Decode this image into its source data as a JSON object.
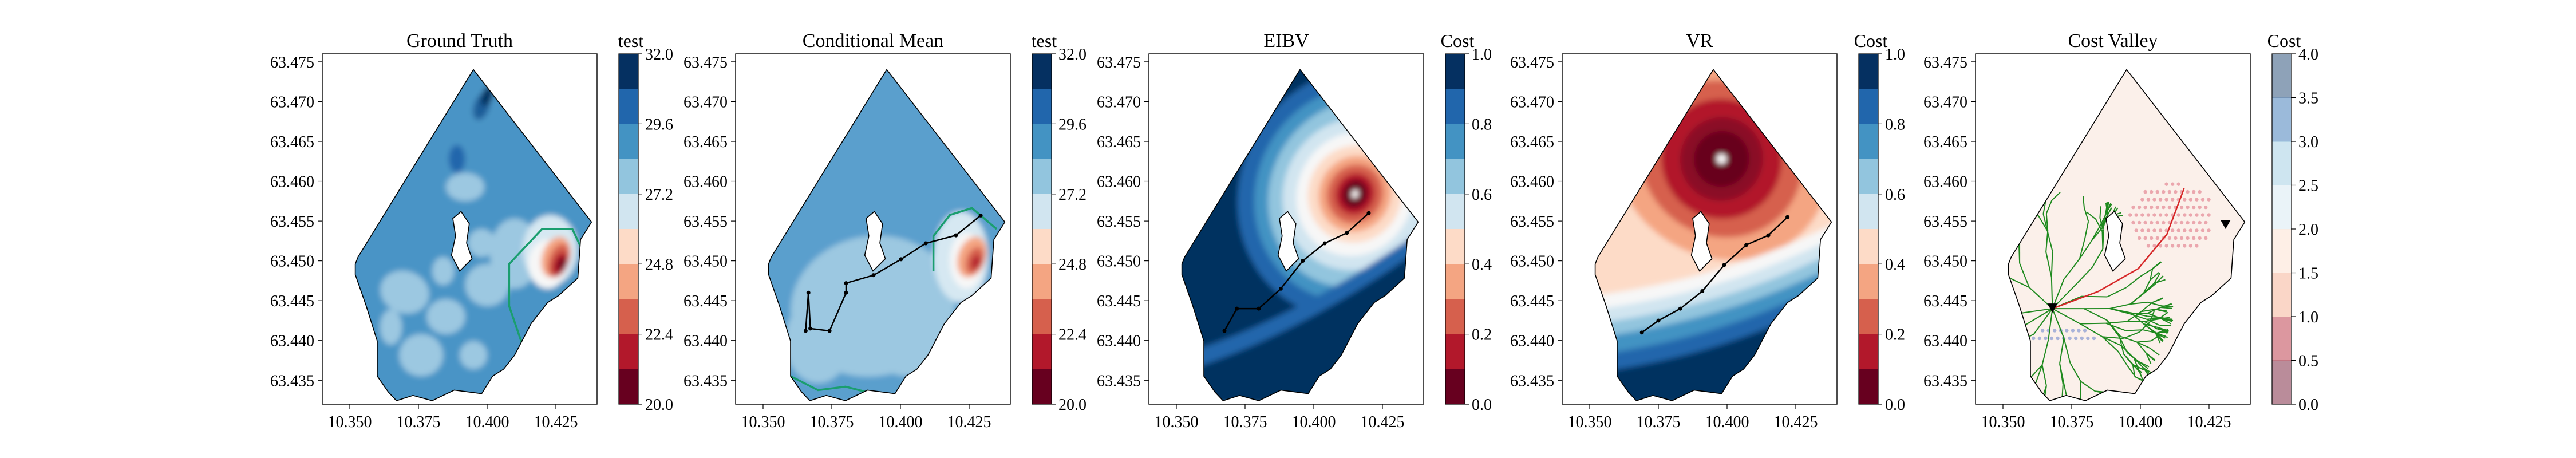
{
  "figure": {
    "panels": [
      {
        "title": "Ground Truth",
        "kind": "field",
        "colorbar": {
          "title": "test",
          "ticks": [
            "32.0",
            "29.6",
            "27.2",
            "24.8",
            "22.4",
            "20.0"
          ],
          "levels": 10,
          "scheme": "RdBu"
        }
      },
      {
        "title": "Conditional Mean",
        "kind": "field_path",
        "colorbar": {
          "title": "test",
          "ticks": [
            "32.0",
            "29.6",
            "27.2",
            "24.8",
            "22.4",
            "20.0"
          ],
          "levels": 10,
          "scheme": "RdBu"
        }
      },
      {
        "title": "EIBV",
        "kind": "eibv",
        "colorbar": {
          "title": "Cost",
          "ticks": [
            "1.0",
            "0.8",
            "0.6",
            "0.4",
            "0.2",
            "0.0"
          ],
          "levels": 10,
          "scheme": "RdBu"
        }
      },
      {
        "title": "VR",
        "kind": "vr",
        "colorbar": {
          "title": "Cost",
          "ticks": [
            "1.0",
            "0.8",
            "0.6",
            "0.4",
            "0.2",
            "0.0"
          ],
          "levels": 10,
          "scheme": "RdBu"
        }
      },
      {
        "title": "Cost Valley",
        "kind": "valley",
        "colorbar": {
          "title": "Cost",
          "ticks": [
            "4.0",
            "3.5",
            "3.0",
            "2.5",
            "2.0",
            "1.5",
            "1.0",
            "0.5",
            "0.0"
          ],
          "levels": 8,
          "scheme": "RdBu_faded"
        }
      }
    ],
    "colors": {
      "threshold_contour": "#1a9e6f",
      "tree_branches": "#1f8a1f",
      "best_path": "#d62728",
      "path": "#000000",
      "rdbu": [
        "#67001f",
        "#b2182b",
        "#d6604d",
        "#f4a582",
        "#fddbc7",
        "#f7f7f7",
        "#d1e5f0",
        "#92c5de",
        "#4393c3",
        "#2166ac",
        "#053061"
      ]
    }
  },
  "chart_data": [
    {
      "type": "heatmap",
      "title": "Ground Truth",
      "xlim": [
        10.34,
        10.44
      ],
      "ylim": [
        63.432,
        63.476
      ],
      "x_ticks": [
        "10.350",
        "10.375",
        "10.400",
        "10.425"
      ],
      "y_ticks": [
        "63.475",
        "63.470",
        "63.465",
        "63.460",
        "63.455",
        "63.450",
        "63.445",
        "63.440",
        "63.435"
      ],
      "colorbar": {
        "label": "test",
        "range": [
          20.0,
          32.0
        ]
      }
    },
    {
      "type": "heatmap",
      "title": "Conditional Mean",
      "xlim": [
        10.34,
        10.44
      ],
      "ylim": [
        63.432,
        63.476
      ],
      "x_ticks": [
        "10.350",
        "10.375",
        "10.400",
        "10.425"
      ],
      "y_ticks": [
        "63.475",
        "63.470",
        "63.465",
        "63.460",
        "63.455",
        "63.450",
        "63.445",
        "63.440",
        "63.435"
      ],
      "colorbar": {
        "label": "test",
        "range": [
          20.0,
          32.0
        ]
      },
      "path": [
        [
          10.3655,
          63.4412
        ],
        [
          10.3665,
          63.446
        ],
        [
          10.3672,
          63.4415
        ],
        [
          10.3742,
          63.4412
        ],
        [
          10.3802,
          63.446
        ],
        [
          10.3802,
          63.4472
        ],
        [
          10.3902,
          63.4482
        ],
        [
          10.4002,
          63.4502
        ],
        [
          10.4092,
          63.4522
        ],
        [
          10.4202,
          63.4532
        ],
        [
          10.4292,
          63.4557
        ]
      ]
    },
    {
      "type": "heatmap",
      "title": "EIBV",
      "xlim": [
        10.34,
        10.44
      ],
      "ylim": [
        63.432,
        63.476
      ],
      "x_ticks": [
        "10.350",
        "10.375",
        "10.400",
        "10.425"
      ],
      "y_ticks": [
        "63.475",
        "63.470",
        "63.465",
        "63.460",
        "63.455",
        "63.450",
        "63.445",
        "63.440",
        "63.435"
      ],
      "colorbar": {
        "label": "Cost",
        "range": [
          0.0,
          1.0
        ]
      },
      "path": [
        [
          10.3675,
          63.4412
        ],
        [
          10.372,
          63.444
        ],
        [
          10.38,
          63.444
        ],
        [
          10.388,
          63.4465
        ],
        [
          10.396,
          63.45
        ],
        [
          10.404,
          63.4522
        ],
        [
          10.412,
          63.4535
        ],
        [
          10.42,
          63.456
        ]
      ]
    },
    {
      "type": "heatmap",
      "title": "VR",
      "xlim": [
        10.34,
        10.44
      ],
      "ylim": [
        63.432,
        63.476
      ],
      "x_ticks": [
        "10.350",
        "10.375",
        "10.400",
        "10.425"
      ],
      "y_ticks": [
        "63.475",
        "63.470",
        "63.465",
        "63.460",
        "63.455",
        "63.450",
        "63.445",
        "63.440",
        "63.435"
      ],
      "colorbar": {
        "label": "Cost",
        "range": [
          0.0,
          1.0
        ]
      },
      "path": [
        [
          10.369,
          63.441
        ],
        [
          10.375,
          63.4425
        ],
        [
          10.383,
          63.444
        ],
        [
          10.391,
          63.4462
        ],
        [
          10.399,
          63.4495
        ],
        [
          10.407,
          63.452
        ],
        [
          10.415,
          63.4532
        ],
        [
          10.422,
          63.4555
        ]
      ]
    },
    {
      "type": "heatmap",
      "title": "Cost Valley",
      "xlim": [
        10.34,
        10.44
      ],
      "ylim": [
        63.432,
        63.476
      ],
      "x_ticks": [
        "10.350",
        "10.375",
        "10.400",
        "10.425"
      ],
      "y_ticks": [
        "63.475",
        "63.470",
        "63.465",
        "63.460",
        "63.455",
        "63.450",
        "63.445",
        "63.440",
        "63.435"
      ],
      "colorbar": {
        "label": "Cost",
        "range": [
          0.0,
          4.0
        ]
      },
      "start": [
        10.368,
        63.444
      ],
      "target": [
        10.431,
        63.4545
      ]
    }
  ]
}
